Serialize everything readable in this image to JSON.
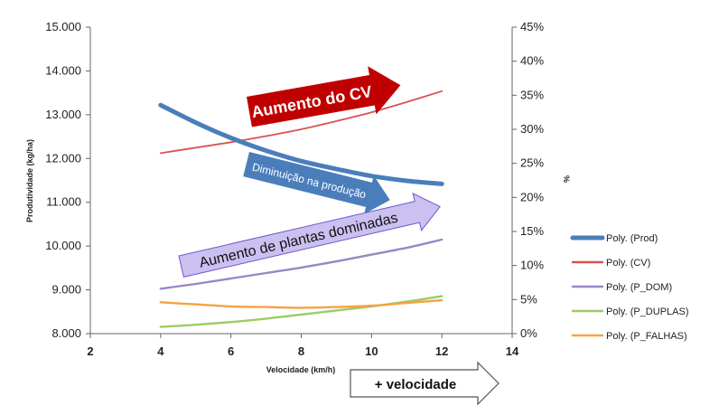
{
  "chart_data": {
    "type": "line",
    "xlabel": "Velocidade (km/h)",
    "ylabel": "Produtividade (kg/ha)",
    "y2label": "%",
    "xlim": [
      2,
      14
    ],
    "xticks": [
      "2",
      "4",
      "6",
      "8",
      "10",
      "12",
      "14"
    ],
    "ylim": [
      8000,
      15000
    ],
    "yticks": [
      "8.000",
      "9.000",
      "10.000",
      "11.000",
      "12.000",
      "13.000",
      "14.000",
      "15.000"
    ],
    "y2lim": [
      0,
      45
    ],
    "y2ticks": [
      "0%",
      "5%",
      "10%",
      "15%",
      "20%",
      "25%",
      "30%",
      "35%",
      "40%",
      "45%"
    ],
    "legend_position": "right",
    "series": [
      {
        "name": "Poly. (Prod)",
        "axis": "left",
        "color": "#4a7ebb",
        "width": 5,
        "x": [
          4,
          5,
          6,
          7,
          8,
          9,
          10,
          11,
          12
        ],
        "values": [
          13220,
          12820,
          12470,
          12180,
          11940,
          11760,
          11600,
          11490,
          11420
        ]
      },
      {
        "name": "Poly. (CV)",
        "axis": "right",
        "color": "#d9534f",
        "width": 1.8,
        "x": [
          4,
          5,
          6,
          7,
          8,
          9,
          10,
          11,
          12
        ],
        "values": [
          26.5,
          27.3,
          28.1,
          29.0,
          30.0,
          31.2,
          32.5,
          34.0,
          35.6
        ]
      },
      {
        "name": "Poly. (P_DOM)",
        "axis": "right",
        "color": "#9b86c4",
        "width": 2.4,
        "x": [
          4,
          5,
          6,
          7,
          8,
          9,
          10,
          11,
          12
        ],
        "values": [
          6.6,
          7.3,
          8.1,
          8.9,
          9.7,
          10.6,
          11.6,
          12.6,
          13.8
        ]
      },
      {
        "name": "Poly. (P_DUPLAS)",
        "axis": "right",
        "color": "#9ccc65",
        "width": 2.4,
        "x": [
          4,
          5,
          6,
          7,
          8,
          9,
          10,
          11,
          12
        ],
        "values": [
          1.0,
          1.3,
          1.7,
          2.2,
          2.8,
          3.4,
          4.0,
          4.7,
          5.5
        ]
      },
      {
        "name": "Poly. (P_FALHAS)",
        "axis": "right",
        "color": "#f5a342",
        "width": 2.4,
        "x": [
          4,
          5,
          6,
          7,
          8,
          9,
          10,
          11,
          12
        ],
        "values": [
          4.6,
          4.3,
          4.0,
          3.9,
          3.8,
          3.9,
          4.1,
          4.5,
          4.9
        ]
      }
    ],
    "annotations": [
      {
        "text": "Aumento do CV",
        "fill": "#c00000",
        "text_color": "#ffffff"
      },
      {
        "text": "Diminuição na produção",
        "fill": "#4a7ebb",
        "text_color": "#ffffff"
      },
      {
        "text": "Aumento de plantas dominadas",
        "fill": "#ccc0f0",
        "text_color": "#111111"
      },
      {
        "text": "+ velocidade",
        "fill": "#ffffff",
        "text_color": "#111111"
      }
    ]
  }
}
